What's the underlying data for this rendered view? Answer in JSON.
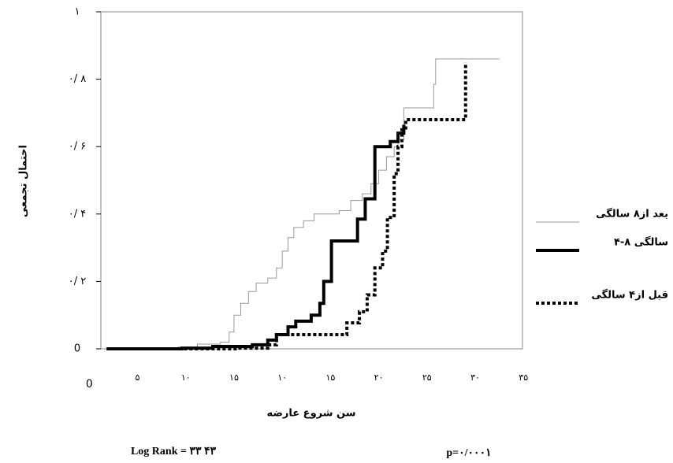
{
  "chart_data": {
    "type": "step",
    "y_label": "احتمال تجمعی",
    "x_label": "سن شروع عارضه",
    "annotations": [
      "Log Rank = ۳۳ ۴۳",
      "p=۰/۰۰۰۱"
    ],
    "xlim": [
      1.2,
      44.9
    ],
    "ylim": [
      0,
      1
    ],
    "xticks": [
      {
        "value": 0,
        "label": "0"
      },
      {
        "value": 5,
        "label": "۵"
      },
      {
        "value": 10,
        "label": "۱۰"
      },
      {
        "value": 15,
        "label": "۱۵"
      },
      {
        "value": 20,
        "label": "۱۰"
      },
      {
        "value": 25,
        "label": "۱۵"
      },
      {
        "value": 30,
        "label": "۲۰"
      },
      {
        "value": 35,
        "label": "۲۵"
      },
      {
        "value": 40,
        "label": "۳۰"
      },
      {
        "value": 45,
        "label": "۳۵"
      }
    ],
    "yticks": [
      {
        "value": 0,
        "label": "0"
      },
      {
        "value": 0.2,
        "label": "۰/ ۲"
      },
      {
        "value": 0.4,
        "label": "۰/ ۴"
      },
      {
        "value": 0.6,
        "label": "۰/ ۶"
      },
      {
        "value": 0.8,
        "label": "۰/ ۸"
      },
      {
        "value": 1,
        "label": "۱"
      }
    ],
    "series": [
      {
        "name": "بعد از۸ سالگی",
        "color": "#999999",
        "style": "thin",
        "x": [
          1.8,
          9.2,
          11.2,
          13.6,
          14.5,
          15.0,
          15.7,
          16.5,
          17.3,
          18.5,
          19.4,
          20.0,
          20.6,
          21.2,
          22.2,
          23.3,
          25.9,
          27.1,
          28.3,
          29.2,
          30.0,
          30.8,
          31.6,
          32.0,
          32.6,
          35.3,
          35.7,
          35.9,
          42.5
        ],
        "values": [
          0,
          0.005,
          0.014,
          0.02,
          0.05,
          0.1,
          0.135,
          0.17,
          0.195,
          0.21,
          0.24,
          0.29,
          0.33,
          0.36,
          0.38,
          0.4,
          0.41,
          0.44,
          0.46,
          0.49,
          0.53,
          0.57,
          0.6,
          0.62,
          0.715,
          0.715,
          0.785,
          0.86,
          0.86
        ]
      },
      {
        "name": "۴-۸ سالگی",
        "color": "#000000",
        "style": "thick",
        "x": [
          1.8,
          9.6,
          12.8,
          16.9,
          18.5,
          19.4,
          20.6,
          21.4,
          23.0,
          23.9,
          24.3,
          25.1,
          27.1,
          27.8,
          28.6,
          29.6,
          30.8,
          31.2,
          32.0,
          32.6
        ],
        "values": [
          0,
          0.002,
          0.007,
          0.012,
          0.026,
          0.042,
          0.065,
          0.082,
          0.1,
          0.135,
          0.2,
          0.32,
          0.32,
          0.385,
          0.445,
          0.6,
          0.6,
          0.615,
          0.64,
          0.665
        ]
      },
      {
        "name": "قبل از۴ سالگی",
        "color": "#000000",
        "style": "dotted",
        "x": [
          1.8,
          15.3,
          18.5,
          19.4,
          26.0,
          26.7,
          28.0,
          28.8,
          29.6,
          30.4,
          30.9,
          31.6,
          32.0,
          32.4,
          32.8,
          38.8,
          39.0
        ],
        "values": [
          0,
          0.002,
          0.012,
          0.042,
          0.042,
          0.077,
          0.11,
          0.16,
          0.24,
          0.29,
          0.39,
          0.52,
          0.6,
          0.65,
          0.68,
          0.68,
          0.85
        ]
      }
    ]
  }
}
